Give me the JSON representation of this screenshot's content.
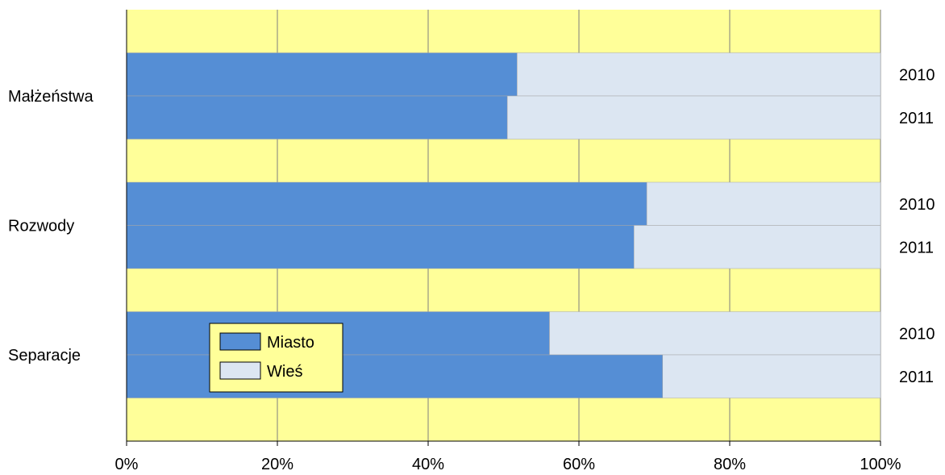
{
  "chart_data": {
    "type": "bar",
    "orientation": "horizontal",
    "stacked": "percent",
    "groups": [
      "Małżeństwa",
      "Rozwody",
      "Separacje"
    ],
    "years": [
      "2010",
      "2011"
    ],
    "series": [
      {
        "name": "Miasto",
        "color": "#558ed5",
        "values": [
          [
            51.8,
            50.5
          ],
          [
            69.0,
            67.3
          ],
          [
            56.1,
            71.1
          ]
        ]
      },
      {
        "name": "Wieś",
        "color": "#dce6f2",
        "values": [
          [
            48.2,
            49.5
          ],
          [
            31.0,
            32.7
          ],
          [
            43.9,
            28.9
          ]
        ]
      }
    ],
    "xlim": [
      0,
      100
    ],
    "x_ticks": [
      "0%",
      "20%",
      "40%",
      "60%",
      "80%",
      "100%"
    ],
    "grid": true,
    "plot_background": "#ffff99",
    "legend": {
      "position": "inside-bottom-left"
    }
  }
}
